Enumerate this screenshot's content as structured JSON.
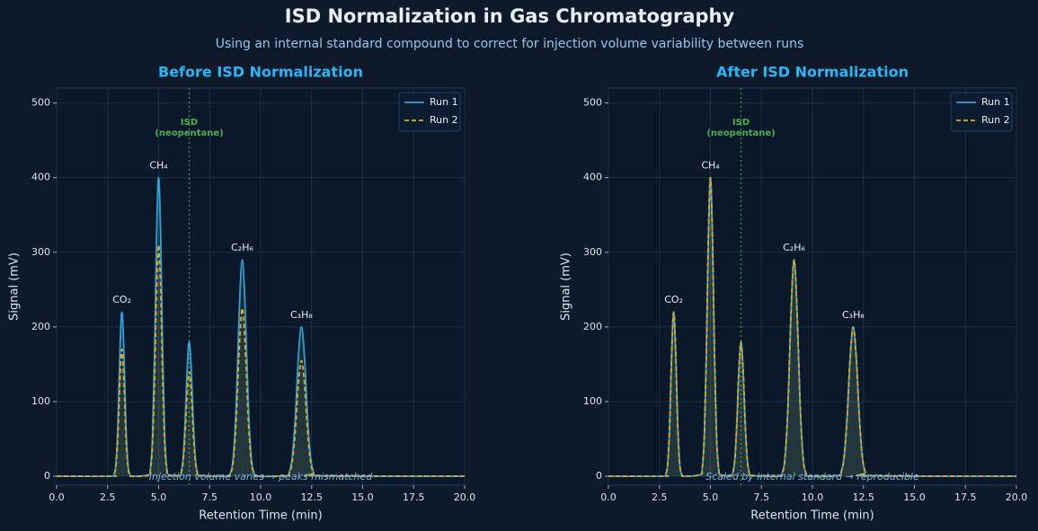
{
  "title": "ISD Normalization in Gas Chromatography",
  "subtitle": "Using an internal standard compound to correct for injection volume variability between runs",
  "chart_data": [
    {
      "type": "line",
      "title": "Before ISD Normalization",
      "xlabel": "Retention Time (min)",
      "ylabel": "Signal (mV)",
      "x": [
        0,
        2.7,
        2.8,
        2.9,
        3.0,
        3.1,
        3.2,
        3.3,
        3.4,
        3.5,
        3.6,
        3.7,
        4.5,
        4.6,
        4.7,
        4.8,
        4.9,
        5.0,
        5.1,
        5.2,
        5.3,
        5.4,
        5.5,
        6.0,
        6.1,
        6.2,
        6.3,
        6.4,
        6.5,
        6.6,
        6.7,
        6.8,
        6.9,
        7.0,
        8.35,
        8.5,
        8.65,
        8.8,
        8.95,
        9.1,
        9.25,
        9.4,
        9.55,
        9.7,
        9.85,
        11.25,
        11.4,
        11.55,
        11.7,
        11.85,
        12.0,
        12.15,
        12.3,
        12.45,
        12.6,
        12.75,
        20
      ],
      "series": [
        {
          "name": "Run 1",
          "color": "#2aa3dc",
          "dashed": false,
          "values": [
            0,
            0,
            2,
            15,
            67,
            164,
            220,
            164,
            67,
            15,
            2,
            0,
            2,
            11,
            54,
            164,
            320,
            400,
            320,
            164,
            54,
            11,
            2,
            1,
            5,
            24,
            74,
            144,
            180,
            144,
            74,
            24,
            5,
            1,
            0,
            3,
            23,
            94,
            219,
            290,
            219,
            94,
            23,
            3,
            0,
            0.6,
            5,
            25,
            79,
            159,
            200,
            159,
            79,
            25,
            5,
            0.6,
            0
          ]
        },
        {
          "name": "Run 2",
          "color": "#e3a81b",
          "dashed": true,
          "values": [
            0,
            0,
            1.5,
            12,
            52,
            126,
            170,
            126,
            52,
            12,
            1.5,
            0,
            1,
            9,
            42,
            127,
            248,
            310,
            248,
            127,
            42,
            9,
            1,
            0.6,
            4,
            19,
            58,
            112,
            140,
            112,
            58,
            19,
            4,
            0.6,
            0,
            2.5,
            18,
            73,
            170,
            225,
            170,
            73,
            18,
            2.5,
            0,
            0.5,
            4,
            19,
            61,
            123,
            155,
            123,
            61,
            19,
            4,
            0.5,
            0
          ]
        }
      ],
      "xlim": [
        0,
        20
      ],
      "ylim": [
        -12,
        520
      ],
      "xticks": [
        {
          "value": 0,
          "label": "0.0"
        },
        {
          "value": 2.5,
          "label": "2.5"
        },
        {
          "value": 5,
          "label": "5.0"
        },
        {
          "value": 7.5,
          "label": "7.5"
        },
        {
          "value": 10,
          "label": "10.0"
        },
        {
          "value": 12.5,
          "label": "12.5"
        },
        {
          "value": 15,
          "label": "15.0"
        },
        {
          "value": 17.5,
          "label": "17.5"
        },
        {
          "value": 20,
          "label": "20.0"
        }
      ],
      "yticks": [
        0,
        100,
        200,
        300,
        400,
        500
      ],
      "grid": true,
      "legend": "upper right",
      "vline": {
        "x": 6.5,
        "label": [
          "ISD",
          "(neopentane)"
        ],
        "color": "#4caf50"
      },
      "peak_labels": [
        {
          "text": "CO₂",
          "x": 3.2,
          "y": 220
        },
        {
          "text": "CH₄",
          "x": 5.0,
          "y": 400
        },
        {
          "text": "C₂H₆",
          "x": 9.1,
          "y": 290
        },
        {
          "text": "C₃H₈",
          "x": 12.0,
          "y": 200
        }
      ],
      "note": "Injection volume varies → peaks mismatched"
    },
    {
      "type": "line",
      "title": "After ISD Normalization",
      "xlabel": "Retention Time (min)",
      "ylabel": "Signal (mV)",
      "x": [
        0,
        2.7,
        2.8,
        2.9,
        3.0,
        3.1,
        3.2,
        3.3,
        3.4,
        3.5,
        3.6,
        3.7,
        4.5,
        4.6,
        4.7,
        4.8,
        4.9,
        5.0,
        5.1,
        5.2,
        5.3,
        5.4,
        5.5,
        6.0,
        6.1,
        6.2,
        6.3,
        6.4,
        6.5,
        6.6,
        6.7,
        6.8,
        6.9,
        7.0,
        8.35,
        8.5,
        8.65,
        8.8,
        8.95,
        9.1,
        9.25,
        9.4,
        9.55,
        9.7,
        9.85,
        11.25,
        11.4,
        11.55,
        11.7,
        11.85,
        12.0,
        12.15,
        12.3,
        12.45,
        12.6,
        12.75,
        20
      ],
      "series": [
        {
          "name": "Run 1",
          "color": "#2aa3dc",
          "dashed": false,
          "values": [
            0,
            0,
            2,
            15,
            67,
            164,
            220,
            164,
            67,
            15,
            2,
            0,
            2,
            11,
            54,
            164,
            320,
            400,
            320,
            164,
            54,
            11,
            2,
            1,
            5,
            24,
            74,
            144,
            180,
            144,
            74,
            24,
            5,
            1,
            0,
            3,
            23,
            94,
            219,
            290,
            219,
            94,
            23,
            3,
            0,
            0.6,
            5,
            25,
            79,
            159,
            200,
            159,
            79,
            25,
            5,
            0.6,
            0
          ]
        },
        {
          "name": "Run 2",
          "color": "#e3a81b",
          "dashed": true,
          "values": [
            0,
            0,
            2,
            15,
            67,
            164,
            220,
            164,
            67,
            15,
            2,
            0,
            2,
            11,
            54,
            164,
            320,
            400,
            320,
            164,
            54,
            11,
            2,
            1,
            5,
            24,
            74,
            144,
            180,
            144,
            74,
            24,
            5,
            1,
            0,
            3,
            23,
            94,
            219,
            290,
            219,
            94,
            23,
            3,
            0,
            0.6,
            5,
            25,
            79,
            159,
            200,
            159,
            79,
            25,
            5,
            0.6,
            0
          ]
        }
      ],
      "xlim": [
        0,
        20
      ],
      "ylim": [
        -12,
        520
      ],
      "xticks": [
        {
          "value": 0,
          "label": "0.0"
        },
        {
          "value": 2.5,
          "label": "2.5"
        },
        {
          "value": 5,
          "label": "5.0"
        },
        {
          "value": 7.5,
          "label": "7.5"
        },
        {
          "value": 10,
          "label": "10.0"
        },
        {
          "value": 12.5,
          "label": "12.5"
        },
        {
          "value": 15,
          "label": "15.0"
        },
        {
          "value": 17.5,
          "label": "17.5"
        },
        {
          "value": 20,
          "label": "20.0"
        }
      ],
      "yticks": [
        0,
        100,
        200,
        300,
        400,
        500
      ],
      "grid": true,
      "legend": "upper right",
      "vline": {
        "x": 6.5,
        "label": [
          "ISD",
          "(neopentane)"
        ],
        "color": "#4caf50"
      },
      "peak_labels": [
        {
          "text": "CO₂",
          "x": 3.2,
          "y": 220
        },
        {
          "text": "CH₄",
          "x": 5.0,
          "y": 400
        },
        {
          "text": "C₂H₆",
          "x": 9.1,
          "y": 290
        },
        {
          "text": "C₃H₈",
          "x": 12.0,
          "y": 200
        }
      ],
      "note": "Scaled by internal standard → reproducible"
    }
  ]
}
